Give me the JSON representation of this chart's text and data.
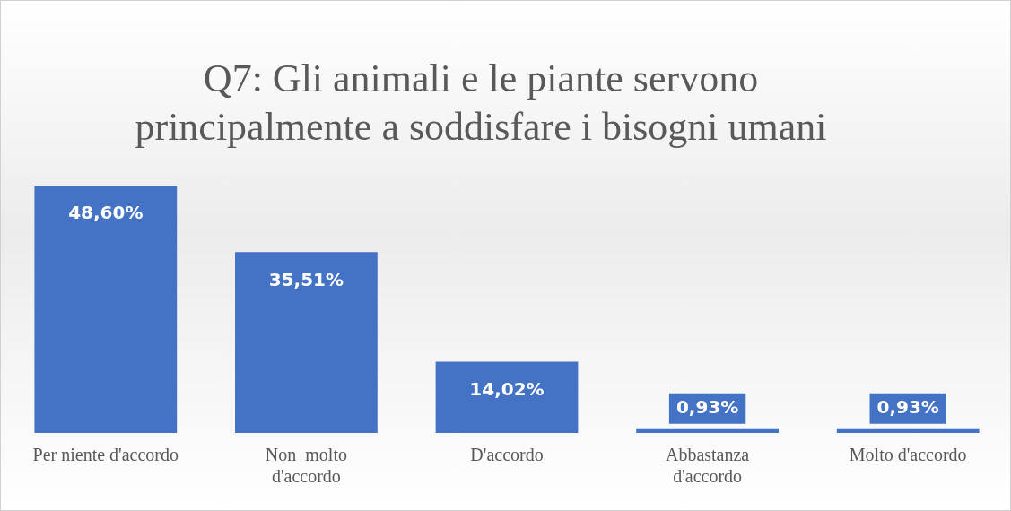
{
  "chart_data": {
    "type": "bar",
    "title": "Q7: Gli animali e le piante servono principalmente a soddisfare i bisogni umani",
    "categories": [
      "Per niente d'accordo",
      "Non  molto d'accordo",
      "D'accordo",
      "Abbastanza d'accordo",
      "Molto d'accordo"
    ],
    "values": [
      48.6,
      35.51,
      14.02,
      0.93,
      0.93
    ],
    "value_labels": [
      "48,60%",
      "35,51%",
      "14,02%",
      "0,93%",
      "0,93%"
    ],
    "color": "#4472c4",
    "grid": false,
    "legend": false
  }
}
